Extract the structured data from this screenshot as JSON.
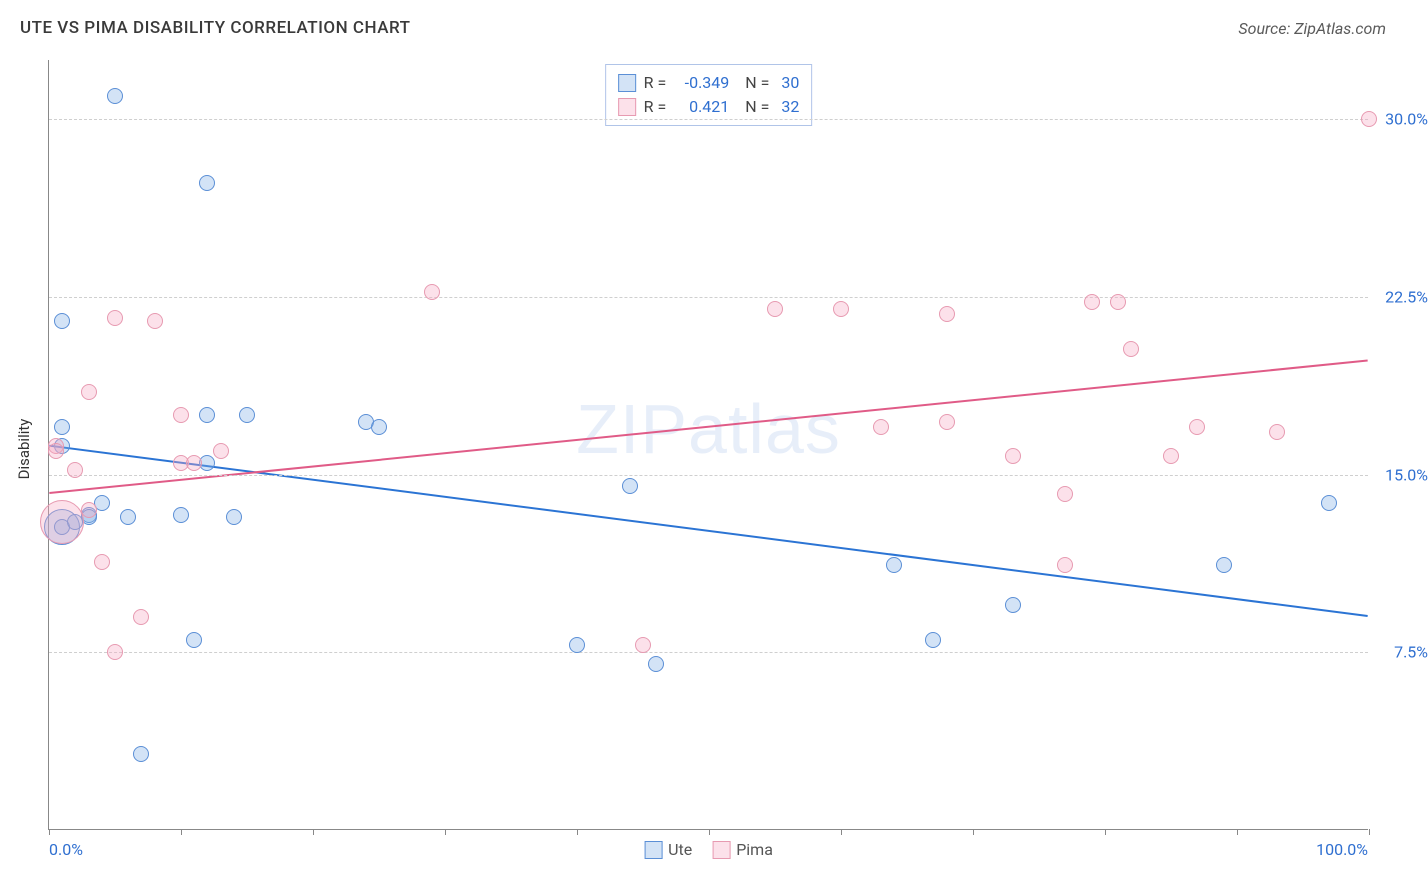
{
  "title": "UTE VS PIMA DISABILITY CORRELATION CHART",
  "source": "Source: ZipAtlas.com",
  "watermark": "ZIPatlas",
  "ylabel": "Disability",
  "chart": {
    "type": "scatter",
    "xlim": [
      0,
      100
    ],
    "ylim": [
      0,
      32.5
    ],
    "xtick_positions": [
      0,
      10,
      20,
      30,
      40,
      50,
      60,
      70,
      80,
      90,
      100
    ],
    "xlabel_start": "0.0%",
    "xlabel_end": "100.0%",
    "yticks": [
      {
        "value": 7.5,
        "label": "7.5%"
      },
      {
        "value": 15.0,
        "label": "15.0%"
      },
      {
        "value": 22.5,
        "label": "22.5%"
      },
      {
        "value": 30.0,
        "label": "30.0%"
      }
    ],
    "grid_color": "#cfcfcf",
    "background_color": "#ffffff",
    "marker_radius": 8,
    "marker_stroke_width": 1.5,
    "trend_line_width": 2,
    "series": [
      {
        "name": "Ute",
        "color_fill": "rgba(130, 175, 230, 0.35)",
        "color_stroke": "#5b8fd6",
        "line_color": "#2b74d4",
        "R": "-0.349",
        "N": "30",
        "trend_line": {
          "x1": 0,
          "y1": 16.2,
          "x2": 100,
          "y2": 9.0
        },
        "points": [
          {
            "x": 1,
            "y": 21.5
          },
          {
            "x": 1,
            "y": 17.0
          },
          {
            "x": 1,
            "y": 16.2
          },
          {
            "x": 1,
            "y": 12.8
          },
          {
            "x": 2,
            "y": 13.0
          },
          {
            "x": 3,
            "y": 13.3
          },
          {
            "x": 3,
            "y": 13.2
          },
          {
            "x": 4,
            "y": 13.8
          },
          {
            "x": 5,
            "y": 31.0
          },
          {
            "x": 6,
            "y": 13.2
          },
          {
            "x": 7,
            "y": 3.2
          },
          {
            "x": 10,
            "y": 13.3
          },
          {
            "x": 11,
            "y": 8.0
          },
          {
            "x": 12,
            "y": 27.3
          },
          {
            "x": 12,
            "y": 15.5
          },
          {
            "x": 12,
            "y": 17.5
          },
          {
            "x": 14,
            "y": 13.2
          },
          {
            "x": 15,
            "y": 17.5
          },
          {
            "x": 24,
            "y": 17.2
          },
          {
            "x": 25,
            "y": 17.0
          },
          {
            "x": 40,
            "y": 7.8
          },
          {
            "x": 44,
            "y": 14.5
          },
          {
            "x": 46,
            "y": 7.0
          },
          {
            "x": 64,
            "y": 11.2
          },
          {
            "x": 67,
            "y": 8.0
          },
          {
            "x": 73,
            "y": 9.5
          },
          {
            "x": 89,
            "y": 11.2
          },
          {
            "x": 97,
            "y": 13.8
          }
        ],
        "large_points": [
          {
            "x": 1,
            "y": 12.8,
            "r": 18
          }
        ]
      },
      {
        "name": "Pima",
        "color_fill": "rgba(245, 170, 195, 0.35)",
        "color_stroke": "#e79ab1",
        "line_color": "#e05b87",
        "R": "0.421",
        "N": "32",
        "trend_line": {
          "x1": 0,
          "y1": 14.2,
          "x2": 100,
          "y2": 19.8
        },
        "points": [
          {
            "x": 0.5,
            "y": 16.2
          },
          {
            "x": 0.5,
            "y": 16.0
          },
          {
            "x": 2,
            "y": 15.2
          },
          {
            "x": 3,
            "y": 18.5
          },
          {
            "x": 3,
            "y": 13.5
          },
          {
            "x": 4,
            "y": 11.3
          },
          {
            "x": 5,
            "y": 21.6
          },
          {
            "x": 5,
            "y": 7.5
          },
          {
            "x": 7,
            "y": 9.0
          },
          {
            "x": 8,
            "y": 21.5
          },
          {
            "x": 10,
            "y": 15.5
          },
          {
            "x": 10,
            "y": 17.5
          },
          {
            "x": 11,
            "y": 15.5
          },
          {
            "x": 13,
            "y": 16.0
          },
          {
            "x": 29,
            "y": 22.7
          },
          {
            "x": 45,
            "y": 7.8
          },
          {
            "x": 55,
            "y": 22.0
          },
          {
            "x": 60,
            "y": 22.0
          },
          {
            "x": 63,
            "y": 17.0
          },
          {
            "x": 68,
            "y": 17.2
          },
          {
            "x": 68,
            "y": 21.8
          },
          {
            "x": 73,
            "y": 15.8
          },
          {
            "x": 77,
            "y": 14.2
          },
          {
            "x": 77,
            "y": 11.2
          },
          {
            "x": 79,
            "y": 22.3
          },
          {
            "x": 81,
            "y": 22.3
          },
          {
            "x": 82,
            "y": 20.3
          },
          {
            "x": 85,
            "y": 15.8
          },
          {
            "x": 87,
            "y": 17.0
          },
          {
            "x": 93,
            "y": 16.8
          },
          {
            "x": 100,
            "y": 30.0
          }
        ],
        "large_points": [
          {
            "x": 1,
            "y": 13.0,
            "r": 22
          }
        ]
      }
    ]
  },
  "legend_label_ute": "Ute",
  "legend_label_pima": "Pima"
}
